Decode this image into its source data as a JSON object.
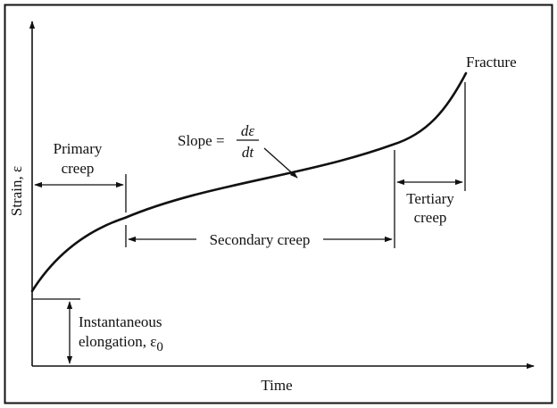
{
  "diagram": {
    "x_axis_label": "Time",
    "y_axis_label": "Strain, ε",
    "fracture_label": "Fracture",
    "primary": {
      "line1": "Primary",
      "line2": "creep"
    },
    "secondary": "Secondary creep",
    "tertiary": {
      "line1": "Tertiary",
      "line2": "creep"
    },
    "slope": {
      "prefix": "Slope =",
      "numerator": "dε",
      "denominator": "dt"
    },
    "instantaneous": {
      "line1": "Instantaneous",
      "line2": "elongation, ε",
      "subscript": "0"
    }
  }
}
